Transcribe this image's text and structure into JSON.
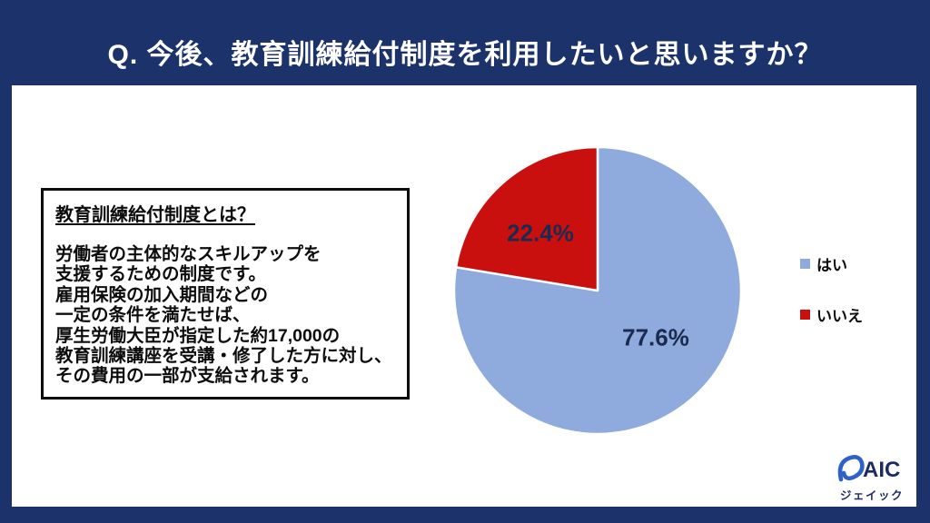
{
  "slide": {
    "title": "Q. 今後、教育訓練給付制度を利用したいと思いますか？"
  },
  "info_box": {
    "heading": "教育訓練給付制度とは？",
    "body_lines": [
      "労働者の主体的なスキルアップを",
      "支援するための制度です。",
      "雇用保険の加入期間などの",
      "一定の条件を満たせば、",
      "厚生労働大臣が指定した約17,000の",
      "教育訓練講座を受講・修了した方に対し、",
      "その費用の一部が支給されます。"
    ]
  },
  "chart_data": {
    "type": "pie",
    "title": "Q. 今後、教育訓練給付制度を利用したいと思いますか？",
    "categories": [
      "はい",
      "いいえ"
    ],
    "values": [
      77.6,
      22.4
    ],
    "unit": "%",
    "labels": [
      "77.6%",
      "22.4%"
    ],
    "colors": [
      "#8FAADC",
      "#C9100F"
    ],
    "start_angle_deg": 0,
    "direction": "clockwise",
    "legend_position": "right",
    "slice_border_color": "#FFFFFF"
  },
  "legend": {
    "items": [
      {
        "label": "はい",
        "color": "#8FAADC"
      },
      {
        "label": "いいえ",
        "color": "#C9100F"
      }
    ]
  },
  "logo": {
    "brand": "JAIC",
    "mark_letters": "AIC",
    "subtext": "ジェイック",
    "mark_color": "#2E62C9",
    "text_color": "#1C2C63"
  },
  "colors": {
    "background_navy": "#1C326B",
    "card_white": "#FFFFFF",
    "title_text": "#FFFFFF",
    "box_border": "#0D0D0D",
    "pie_label_text": "#1B2B4D"
  }
}
